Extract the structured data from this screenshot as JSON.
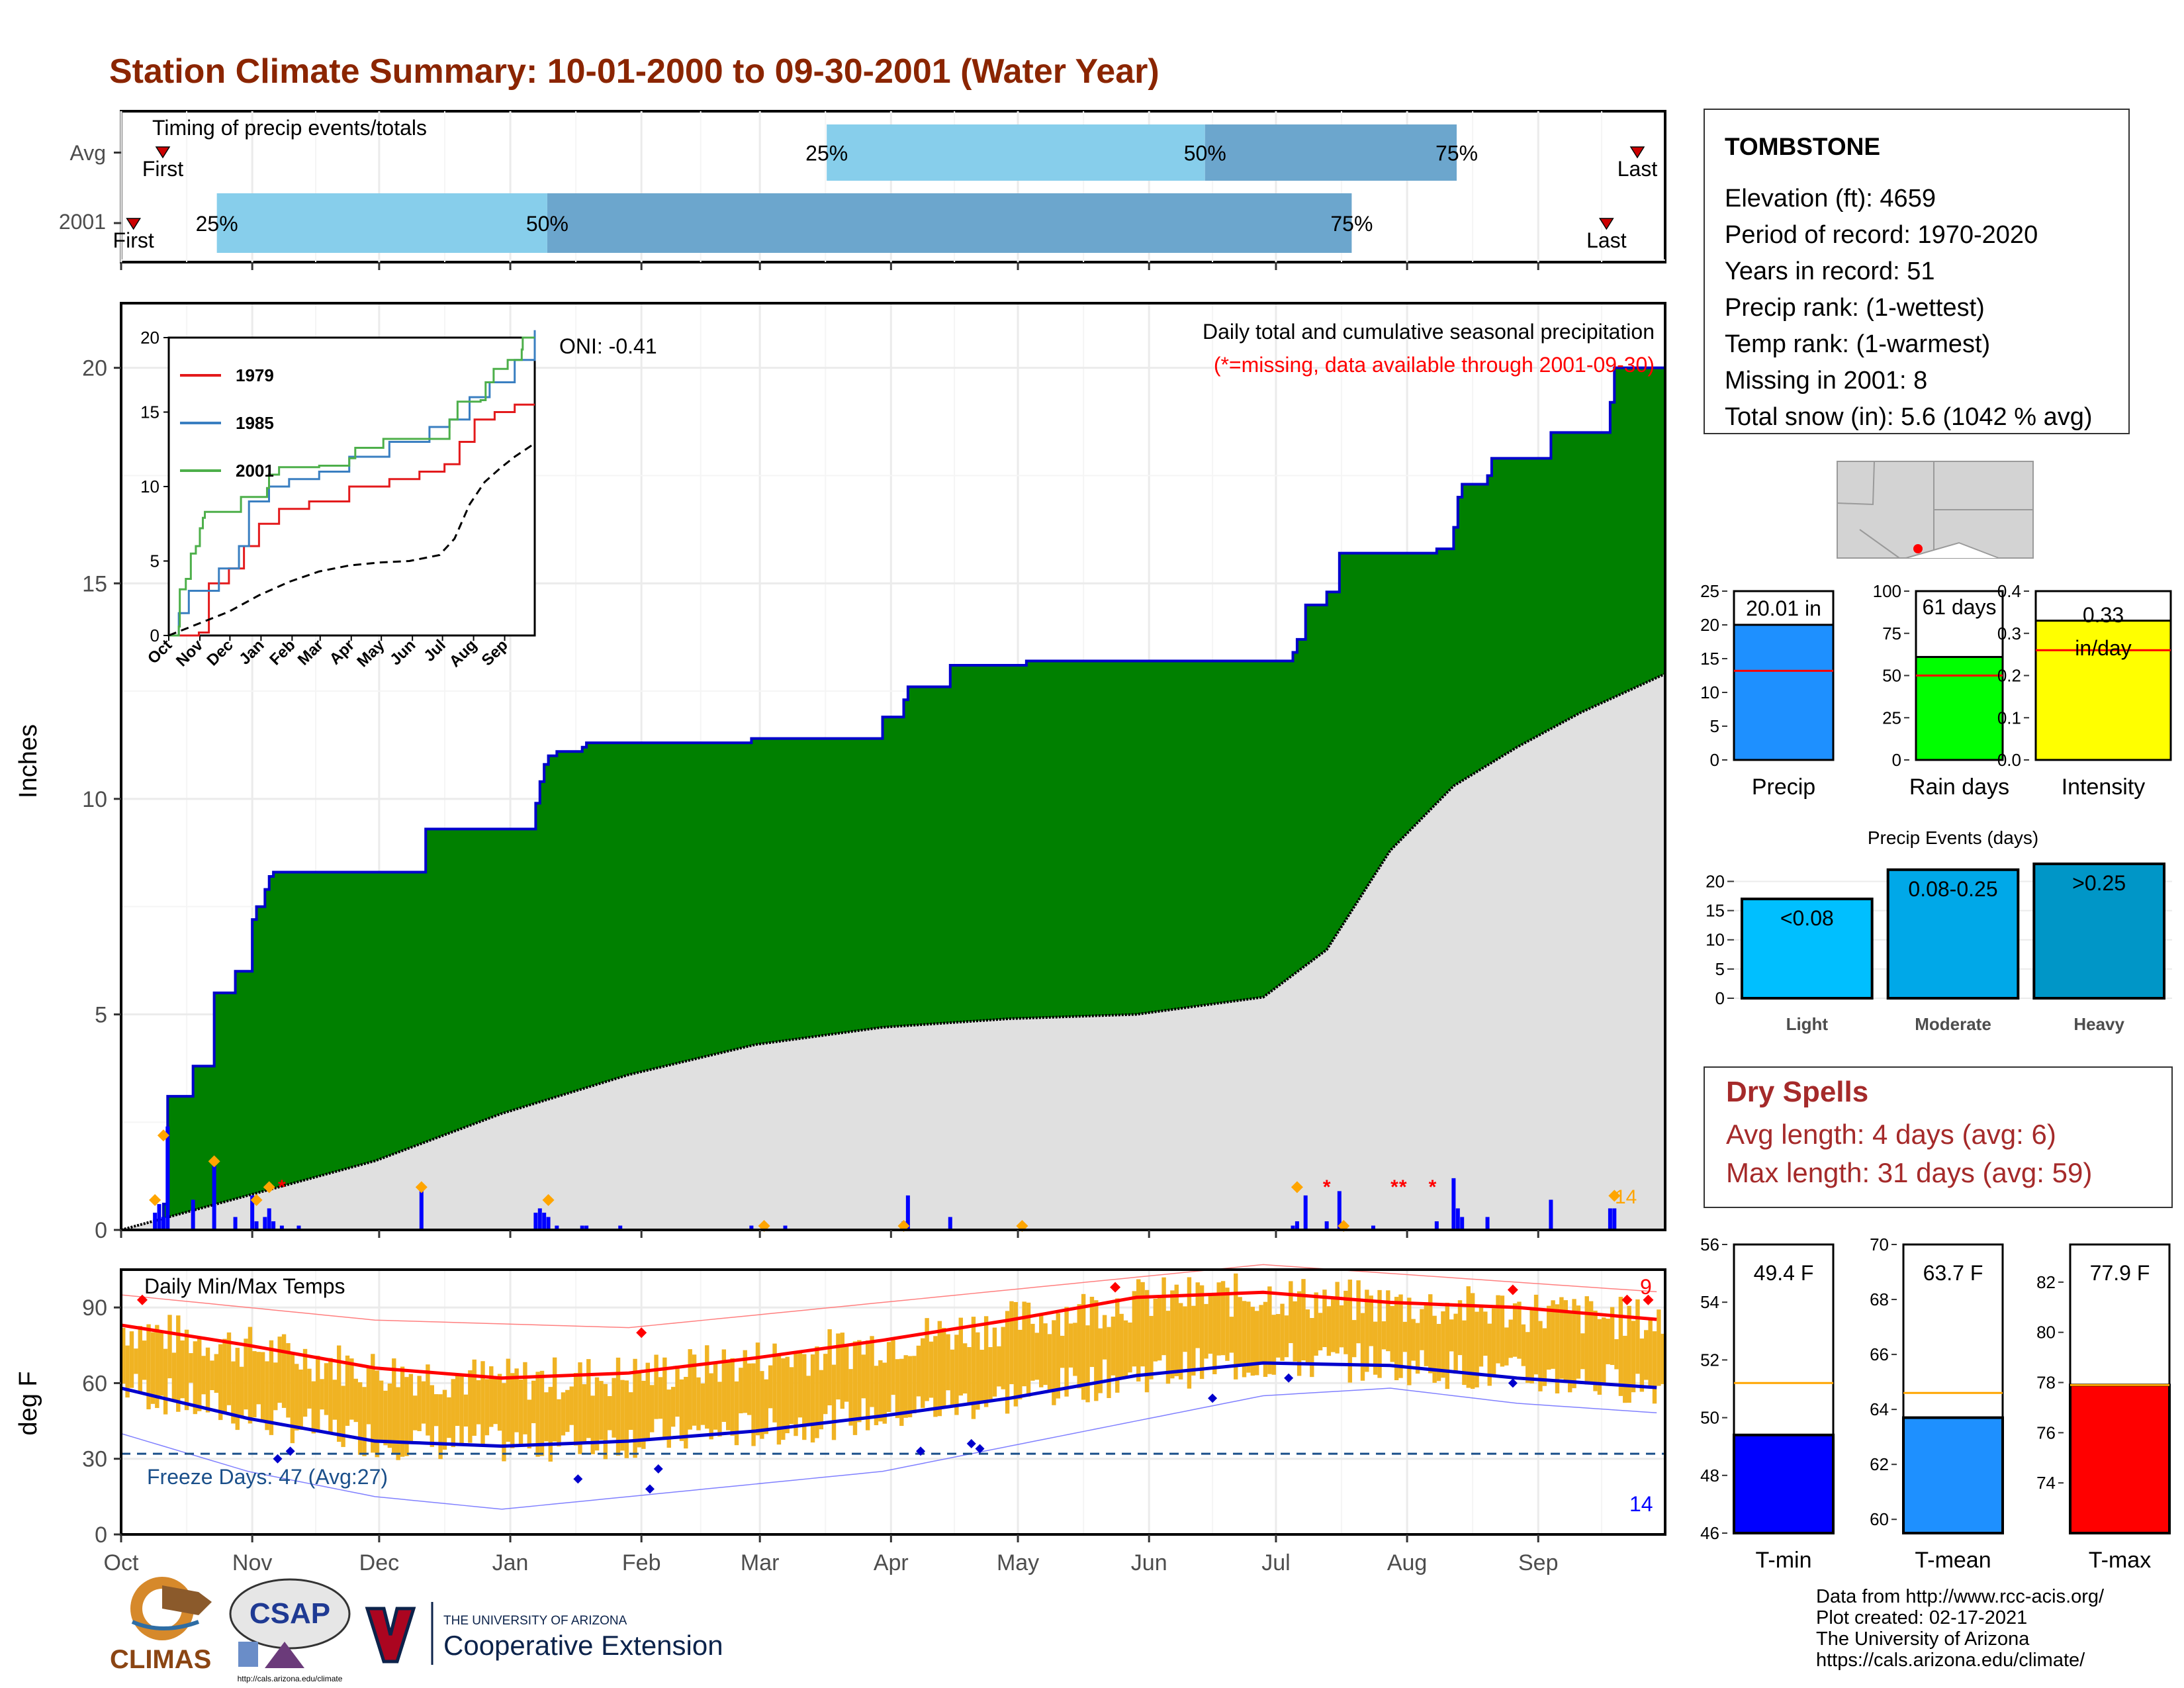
{
  "title": "Station Climate Summary: 10-01-2000 to 09-30-2001 (Water Year)",
  "timing": {
    "label": "Timing of precip events/totals",
    "rows": [
      {
        "name": "Avg",
        "first_label": "First",
        "last_label": "Last",
        "first": 0.027,
        "p25": 0.457,
        "p50": 0.702,
        "p75": 0.865,
        "last": 0.982,
        "pct_labels": [
          "25%",
          "50%",
          "75%"
        ]
      },
      {
        "name": "2001",
        "first_label": "First",
        "last_label": "Last",
        "first": 0.008,
        "p25": 0.062,
        "p50": 0.276,
        "p75": 0.797,
        "last": 0.962,
        "pct_labels": [
          "25%",
          "50%",
          "75%"
        ]
      }
    ]
  },
  "station": {
    "name": "TOMBSTONE",
    "lines": [
      "Elevation (ft): 4659",
      "Period of record: 1970-2020",
      "Years in record: 51",
      "Precip rank:  (1-wettest)",
      "Temp rank:  (1-warmest)",
      "Missing in 2001: 8",
      "Total snow (in): 5.6 (1042 % avg)"
    ]
  },
  "months": [
    "Oct",
    "Nov",
    "Dec",
    "Jan",
    "Feb",
    "Mar",
    "Apr",
    "May",
    "Jun",
    "Jul",
    "Aug",
    "Sep"
  ],
  "month_days": [
    0,
    31,
    61,
    92,
    123,
    151,
    182,
    212,
    243,
    273,
    304,
    335,
    365
  ],
  "precip_panel": {
    "ylabel": "Inches",
    "yticks": [
      0,
      5,
      10,
      15,
      20
    ],
    "ylim": [
      0,
      21.5
    ],
    "heading": "Daily total and cumulative seasonal precipitation",
    "missing_note": "(*=missing, data available through 2001-09-30)",
    "oni": "ONI: -0.41",
    "snow_count": "14",
    "colors": {
      "cum": "#008000",
      "cum_line": "#0000cc",
      "avg": "#e0e0e0",
      "daily": "#0000ff",
      "snow": "#ffa500",
      "missing": "#ff0000"
    }
  },
  "chart_data": [
    {
      "type": "area",
      "title": "Daily total and cumulative seasonal precipitation",
      "ylabel": "Inches",
      "ylim": [
        0,
        21.5
      ],
      "x_unit": "day of water year (0 = Oct 1)",
      "series": [
        {
          "name": "2001",
          "x": [
            0,
            10,
            11,
            17,
            22,
            27,
            31,
            32,
            34,
            35,
            36,
            71,
            72,
            82,
            98,
            99,
            100,
            101,
            103,
            109,
            110,
            118,
            149,
            180,
            185,
            186,
            196,
            214,
            271,
            277,
            278,
            280,
            285,
            288,
            296,
            311,
            315,
            316,
            317,
            323,
            324,
            338,
            352,
            353,
            365
          ],
          "y": [
            0,
            0.6,
            3.1,
            3.8,
            5.5,
            6.0,
            7.2,
            7.5,
            7.9,
            8.2,
            8.3,
            8.3,
            9.3,
            9.3,
            9.9,
            10.4,
            10.8,
            11.0,
            11.1,
            11.2,
            11.3,
            11.3,
            11.4,
            11.9,
            12.3,
            12.6,
            13.1,
            13.2,
            13.2,
            13.4,
            13.7,
            14.5,
            14.8,
            15.7,
            15.7,
            15.8,
            16.3,
            17.0,
            17.3,
            17.5,
            17.9,
            18.5,
            19.2,
            20.0,
            20.0
          ]
        },
        {
          "name": "Avg",
          "x": [
            0,
            30,
            60,
            90,
            120,
            150,
            180,
            210,
            240,
            270,
            285,
            300,
            315,
            330,
            345,
            365
          ],
          "y": [
            0,
            0.8,
            1.6,
            2.7,
            3.6,
            4.3,
            4.7,
            4.9,
            5.0,
            5.4,
            6.5,
            8.8,
            10.3,
            11.2,
            12.0,
            12.9
          ]
        }
      ]
    },
    {
      "type": "bar",
      "title": "Daily precipitation",
      "x_unit": "day of water year",
      "x": [
        8,
        9,
        10,
        11,
        17,
        22,
        27,
        31,
        32,
        34,
        35,
        36,
        38,
        42,
        71,
        98,
        99,
        100,
        101,
        103,
        109,
        110,
        118,
        149,
        157,
        185,
        186,
        196,
        277,
        278,
        280,
        285,
        288,
        296,
        311,
        315,
        316,
        317,
        323,
        338,
        352,
        353
      ],
      "values": [
        0.4,
        0.6,
        0.3,
        2.4,
        0.7,
        1.5,
        0.3,
        0.8,
        0.2,
        0.3,
        0.5,
        0.2,
        0.1,
        0.1,
        1.0,
        0.4,
        0.5,
        0.4,
        0.3,
        0.1,
        0.1,
        0.1,
        0.1,
        0.1,
        0.1,
        0.2,
        0.8,
        0.3,
        0.1,
        0.2,
        0.8,
        0.2,
        0.9,
        0.1,
        0.2,
        1.2,
        0.5,
        0.3,
        0.3,
        0.7,
        0.5,
        0.5
      ]
    },
    {
      "type": "line",
      "title": "Inset cumulative precipitation",
      "ylim": [
        0,
        20
      ],
      "series": [
        {
          "name": "1979",
          "x": [
            0,
            30,
            40,
            60,
            75,
            90,
            110,
            140,
            180,
            220,
            250,
            275,
            290,
            305,
            325,
            345,
            365
          ],
          "y": [
            0,
            0.2,
            3.5,
            4.5,
            6.0,
            7.5,
            8.5,
            9.0,
            10.0,
            10.5,
            11.0,
            11.5,
            13.0,
            14.5,
            15.0,
            15.5,
            15.5
          ]
        },
        {
          "name": "1985",
          "x": [
            0,
            10,
            20,
            50,
            70,
            80,
            100,
            120,
            150,
            180,
            220,
            260,
            280,
            300,
            320,
            345,
            365
          ],
          "y": [
            0,
            1.5,
            3.0,
            4.5,
            6.0,
            9.0,
            10.0,
            10.5,
            11.0,
            12.0,
            13.0,
            14.0,
            14.5,
            16.0,
            17.0,
            18.5,
            21.0
          ]
        },
        {
          "name": "2001",
          "x": [
            0,
            10,
            11,
            17,
            22,
            27,
            31,
            34,
            36,
            72,
            98,
            100,
            110,
            150,
            180,
            186,
            214,
            271,
            280,
            288,
            311,
            316,
            324,
            338,
            352,
            353,
            365
          ],
          "y": [
            0,
            0.6,
            3.1,
            3.8,
            5.5,
            6.0,
            7.2,
            7.9,
            8.3,
            9.3,
            9.9,
            10.8,
            11.3,
            11.4,
            11.9,
            12.6,
            13.2,
            13.2,
            14.5,
            15.7,
            15.8,
            17.0,
            17.9,
            18.5,
            19.2,
            20.0,
            20.0
          ]
        },
        {
          "name": "Avg",
          "x": [
            0,
            30,
            60,
            90,
            120,
            150,
            180,
            210,
            240,
            270,
            285,
            300,
            315,
            330,
            345,
            365
          ],
          "y": [
            0,
            0.8,
            1.6,
            2.7,
            3.6,
            4.3,
            4.7,
            4.9,
            5.0,
            5.4,
            6.5,
            8.8,
            10.3,
            11.2,
            12.0,
            12.9
          ]
        }
      ]
    },
    {
      "type": "line",
      "title": "Daily Min/Max Temps",
      "ylabel": "deg F",
      "ylim": [
        0,
        105
      ],
      "series": [
        {
          "name": "Avg max",
          "x": [
            0,
            30,
            60,
            90,
            120,
            150,
            180,
            210,
            240,
            270,
            300,
            330,
            365
          ],
          "y": [
            83,
            75,
            66,
            62,
            64,
            70,
            77,
            85,
            94,
            96,
            92,
            90,
            85
          ]
        },
        {
          "name": "Avg min",
          "x": [
            0,
            30,
            60,
            90,
            120,
            150,
            180,
            210,
            240,
            270,
            300,
            330,
            365
          ],
          "y": [
            58,
            46,
            37,
            35,
            37,
            41,
            47,
            54,
            63,
            68,
            67,
            62,
            58
          ]
        },
        {
          "name": "Record max",
          "x": [
            0,
            60,
            120,
            180,
            240,
            270,
            330,
            365
          ],
          "y": [
            95,
            85,
            82,
            92,
            102,
            107,
            100,
            96
          ]
        },
        {
          "name": "Record min",
          "x": [
            0,
            30,
            60,
            90,
            120,
            150,
            180,
            210,
            240,
            270,
            300,
            330,
            365
          ],
          "y": [
            40,
            25,
            15,
            10,
            15,
            20,
            25,
            35,
            45,
            55,
            58,
            52,
            48
          ]
        }
      ]
    },
    {
      "type": "bar",
      "title": "Precip",
      "categories": [
        "Precip"
      ],
      "values": [
        20.01
      ],
      "avg": 13.2,
      "ylim": [
        0,
        25
      ],
      "label": "20.01 in"
    },
    {
      "type": "bar",
      "title": "Rain days",
      "categories": [
        "Rain days"
      ],
      "values": [
        61
      ],
      "avg": 50,
      "ylim": [
        0,
        100
      ],
      "label": "61 days"
    },
    {
      "type": "bar",
      "title": "Intensity",
      "categories": [
        "Intensity"
      ],
      "values": [
        0.33
      ],
      "avg": 0.26,
      "ylim": [
        0,
        0.4
      ]
    },
    {
      "type": "bar",
      "title": "Precip Events (days)",
      "categories": [
        "Light",
        "Moderate",
        "Heavy"
      ],
      "values": [
        17,
        22,
        23
      ],
      "ylim": [
        0,
        23
      ]
    },
    {
      "type": "bar",
      "title": "T-min",
      "categories": [
        "T-min"
      ],
      "values": [
        49.4
      ],
      "avg": 51.2,
      "ylim": [
        46,
        56
      ]
    },
    {
      "type": "bar",
      "title": "T-mean",
      "categories": [
        "T-mean"
      ],
      "values": [
        63.7
      ],
      "avg": 64.6,
      "ylim": [
        59.5,
        70
      ]
    },
    {
      "type": "bar",
      "title": "T-max",
      "categories": [
        "T-max"
      ],
      "values": [
        77.9
      ],
      "avg": 77.9,
      "ylim": [
        72,
        83.5
      ]
    }
  ],
  "inset": {
    "yticks": [
      0,
      5,
      10,
      15,
      20
    ],
    "months": [
      "Oct",
      "Nov",
      "Dec",
      "Jan",
      "Feb",
      "Mar",
      "Apr",
      "May",
      "Jun",
      "Jul",
      "Aug",
      "Sep"
    ],
    "legend": [
      {
        "name": "1979",
        "color": "#e31a1c"
      },
      {
        "name": "1985",
        "color": "#3a7fc1"
      },
      {
        "name": "2001",
        "color": "#4daf4a"
      }
    ]
  },
  "temp_panel": {
    "label": "Daily Min/Max Temps",
    "ylabel": "deg F",
    "yticks": [
      0,
      30,
      60,
      90
    ],
    "freeze_line": 32,
    "freeze_text": "Freeze Days: 47 (Avg:27)",
    "count_top": "9",
    "count_bottom": "14",
    "colors": {
      "bars": "#f0b323",
      "max": "#ff0000",
      "min": "#0000cc",
      "freeze": "#1a4f8a"
    }
  },
  "mini": {
    "precip": {
      "yticks": [
        "0",
        "5",
        "10",
        "15",
        "20",
        "25"
      ],
      "xlabel": "Precip",
      "label": "20.01 in",
      "color": "#1e90ff"
    },
    "raindays": {
      "yticks": [
        "0",
        "25",
        "50",
        "75",
        "100"
      ],
      "xlabel": "Rain days",
      "label": "61 days",
      "color": "#00ff00"
    },
    "intensity": {
      "yticks": [
        "0.0",
        "0.1",
        "0.2",
        "0.3",
        "0.4"
      ],
      "xlabel": "Intensity",
      "label1": "0.33",
      "label2": "in/day",
      "color": "#ffff00"
    }
  },
  "events": {
    "title": "Precip Events (days)",
    "yticks": [
      0,
      5,
      10,
      15,
      20
    ],
    "bars": [
      {
        "name": "Light",
        "label": "<0.08",
        "color": "#00bfff"
      },
      {
        "name": "Moderate",
        "label": "0.08-0.25",
        "color": "#00a8e8"
      },
      {
        "name": "Heavy",
        "label": ">0.25",
        "color": "#0096c7"
      }
    ]
  },
  "dry": {
    "title": "Dry Spells",
    "line1": "Avg length: 4 days (avg: 6)",
    "line2": "Max length: 31 days (avg: 59)",
    "color": "#a52a2a"
  },
  "temps": {
    "tmin": {
      "yticks": [
        "46",
        "48",
        "50",
        "52",
        "54",
        "56"
      ],
      "label": "49.4 F",
      "xlabel": "T-min",
      "color": "#0000ff"
    },
    "tmean": {
      "yticks": [
        "60",
        "62",
        "64",
        "66",
        "68",
        "70"
      ],
      "label": "63.7 F",
      "xlabel": "T-mean",
      "color": "#1e90ff"
    },
    "tmax": {
      "yticks": [
        "74",
        "76",
        "78",
        "80",
        "82"
      ],
      "label": "77.9 F",
      "xlabel": "T-max",
      "color": "#ff0000"
    }
  },
  "credits": [
    "Data from http://www.rcc-acis.org/",
    "Plot created: 02-17-2021",
    "The University of Arizona",
    "https://cals.arizona.edu/climate/"
  ],
  "logos": {
    "climas": "CLIMAS",
    "csap": "CSAP",
    "csap_url": "http://cals.arizona.edu/climate",
    "ua_small": "THE UNIVERSITY OF ARIZONA",
    "ua_big": "Cooperative Extension"
  }
}
